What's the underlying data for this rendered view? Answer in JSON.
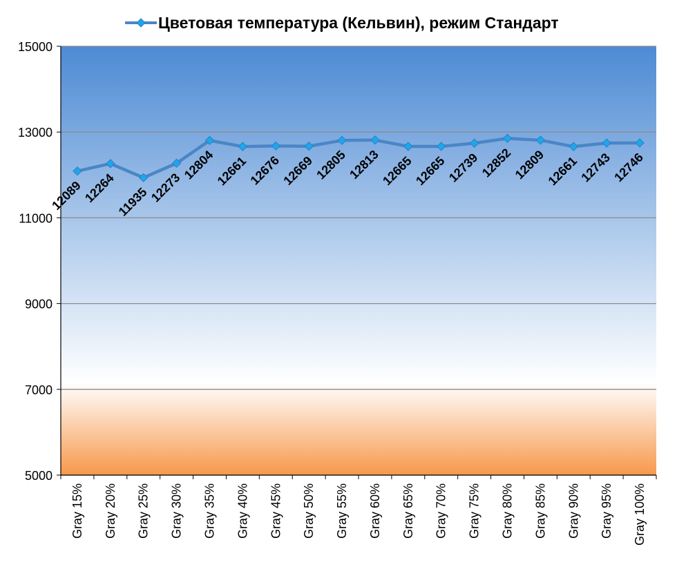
{
  "chart_data": {
    "type": "line",
    "title": "",
    "xlabel": "",
    "ylabel": "",
    "categories": [
      "Gray 15%",
      "Gray 20%",
      "Gray 25%",
      "Gray 30%",
      "Gray 35%",
      "Gray 40%",
      "Gray 45%",
      "Gray 50%",
      "Gray 55%",
      "Gray 60%",
      "Gray 65%",
      "Gray 70%",
      "Gray 75%",
      "Gray 80%",
      "Gray 85%",
      "Gray 90%",
      "Gray 95%",
      "Gray 100%"
    ],
    "series": [
      {
        "name": "Цветовая температура (Кельвин), режим Стандарт",
        "values": [
          12089,
          12264,
          11935,
          12273,
          12804,
          12661,
          12676,
          12669,
          12805,
          12813,
          12665,
          12665,
          12739,
          12852,
          12809,
          12661,
          12743,
          12746
        ],
        "color": "#4a86c6",
        "marker_color": "#1ea6ec"
      }
    ],
    "ylim": [
      5000,
      15000
    ],
    "yticks": [
      5000,
      7000,
      9000,
      11000,
      13000,
      15000
    ],
    "grid": true,
    "legend": "top-center",
    "data_labels": true,
    "background": {
      "top_color": "#4d8ad4",
      "middle_color": "#ffffff",
      "bottom_color": "#f7984a",
      "warm_band_from": 7000
    }
  }
}
